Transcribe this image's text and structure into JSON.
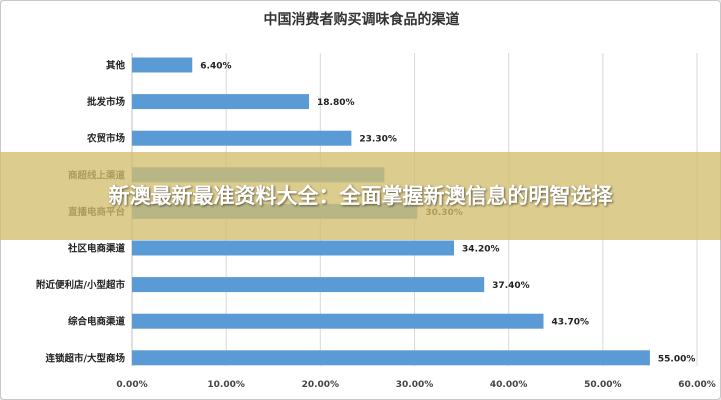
{
  "chart_data": {
    "type": "bar",
    "orientation": "horizontal",
    "title": "中国消费者购买调味食品的渠道",
    "categories": [
      "其他",
      "批发市场",
      "农贸市场",
      "商超线上渠道",
      "直播电商平台",
      "社区电商渠道",
      "附近便利店/小型超市",
      "综合电商渠道",
      "连锁超市/大型商场"
    ],
    "values": [
      6.4,
      18.8,
      23.3,
      26.8,
      30.3,
      34.2,
      37.4,
      43.7,
      55.0
    ],
    "value_labels": [
      "6.40%",
      "18.80%",
      "23.30%",
      "",
      "30.30%",
      "34.20%",
      "37.40%",
      "43.70%",
      "55.00%"
    ],
    "xlim": [
      0,
      60
    ],
    "x_ticks": [
      "0.00%",
      "10.00%",
      "20.00%",
      "30.00%",
      "40.00%",
      "50.00%",
      "60.00%"
    ],
    "grid": true,
    "bar_color": "#5b9bd5"
  },
  "banner": {
    "text": "新澳最新最准资料大全：全面掌握新澳信息的明智选择"
  }
}
